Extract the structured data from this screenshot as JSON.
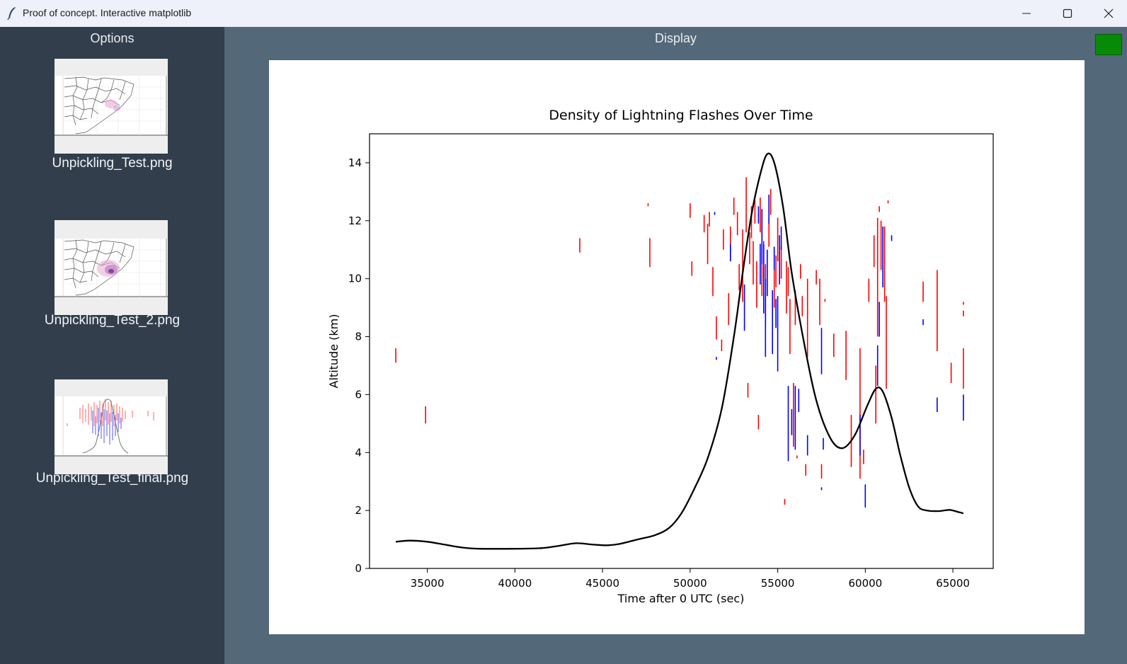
{
  "window": {
    "title": "Proof of concept. Interactive matplotlib",
    "icon": "feather-icon",
    "controls": [
      "minimize-icon",
      "maximize-icon",
      "close-icon"
    ]
  },
  "sidebar": {
    "title": "Options",
    "items": [
      {
        "label": "Unpickling_Test.png",
        "preview": "county-map"
      },
      {
        "label": "Unpickling_Test_2.png",
        "preview": "county-map-density"
      },
      {
        "label": "Unpickling_Test_final.png",
        "preview": "lightning-scatter"
      }
    ]
  },
  "display": {
    "title": "Display",
    "status_color": "#078a07"
  },
  "chart_data": {
    "type": "scatter",
    "title": "Density of Lightning Flashes Over Time",
    "xlabel": "Time after 0 UTC (sec)",
    "ylabel": "Altitude (km)",
    "xlim": [
      31700,
      67300
    ],
    "ylim": [
      0,
      15
    ],
    "xticks": [
      35000,
      40000,
      45000,
      50000,
      55000,
      60000,
      65000
    ],
    "yticks": [
      0,
      2,
      4,
      6,
      8,
      10,
      12,
      14
    ],
    "grid": false,
    "colors": {
      "positive": "#ff0000",
      "negative": "#0000ff",
      "density": "#000000"
    },
    "series": [
      {
        "marker": "vertical-segment",
        "color": "#ff0000",
        "segments": [
          [
            33200,
            7.1,
            7.6
          ],
          [
            34900,
            5.0,
            5.6
          ],
          [
            43700,
            10.9,
            11.4
          ],
          [
            47600,
            12.5,
            12.6
          ],
          [
            47700,
            10.4,
            11.4
          ],
          [
            50000,
            12.1,
            12.6
          ],
          [
            50100,
            10.1,
            10.6
          ],
          [
            50800,
            11.6,
            12.2
          ],
          [
            51000,
            10.5,
            11.9
          ],
          [
            51100,
            11.8,
            12.3
          ],
          [
            51300,
            9.4,
            10.4
          ],
          [
            51500,
            7.9,
            8.7
          ],
          [
            51800,
            7.5,
            7.9
          ],
          [
            51900,
            11.0,
            11.7
          ],
          [
            52200,
            8.4,
            9.5
          ],
          [
            52300,
            10.6,
            11.8
          ],
          [
            52500,
            12.2,
            12.8
          ],
          [
            52700,
            11.5,
            12.3
          ],
          [
            52800,
            9.6,
            10.5
          ],
          [
            53000,
            9.2,
            11.7
          ],
          [
            53200,
            11.6,
            13.5
          ],
          [
            53300,
            5.9,
            6.4
          ],
          [
            53400,
            10.5,
            11.6
          ],
          [
            53500,
            11.4,
            12.5
          ],
          [
            53600,
            9.8,
            11.3
          ],
          [
            53700,
            11.9,
            12.7
          ],
          [
            53800,
            9.0,
            10.6
          ],
          [
            53900,
            4.8,
            5.3
          ],
          [
            54000,
            11.6,
            12.8
          ],
          [
            54100,
            9.4,
            12.4
          ],
          [
            54200,
            10.0,
            11.3
          ],
          [
            54300,
            8.4,
            10.5
          ],
          [
            54500,
            11.1,
            12.1
          ],
          [
            54600,
            12.2,
            13.1
          ],
          [
            54800,
            9.0,
            11.1
          ],
          [
            54900,
            9.7,
            10.8
          ],
          [
            55000,
            10.6,
            12.1
          ],
          [
            55200,
            10.0,
            11.1
          ],
          [
            55400,
            2.2,
            2.4
          ],
          [
            55500,
            8.8,
            10.6
          ],
          [
            55600,
            9.4,
            10.4
          ],
          [
            55700,
            7.4,
            9.3
          ],
          [
            55900,
            4.2,
            6.4
          ],
          [
            56000,
            8.4,
            9.6
          ],
          [
            56100,
            3.8,
            3.9
          ],
          [
            56300,
            10.0,
            10.5
          ],
          [
            56400,
            8.7,
            9.4
          ],
          [
            56600,
            3.2,
            3.6
          ],
          [
            56700,
            7.3,
            10.0
          ],
          [
            57200,
            9.8,
            10.3
          ],
          [
            57400,
            8.4,
            10.0
          ],
          [
            57500,
            3.1,
            3.6
          ],
          [
            57700,
            9.2,
            9.3
          ],
          [
            58200,
            7.3,
            8.1
          ],
          [
            58900,
            6.5,
            8.2
          ],
          [
            59200,
            3.5,
            5.3
          ],
          [
            59700,
            3.1,
            7.6
          ],
          [
            59900,
            3.6,
            4.1
          ],
          [
            60200,
            9.2,
            10.0
          ],
          [
            60500,
            10.4,
            11.5
          ],
          [
            60600,
            5.0,
            7.0
          ],
          [
            60700,
            8.0,
            12.1
          ],
          [
            60800,
            12.3,
            12.5
          ],
          [
            60900,
            10.3,
            12.0
          ],
          [
            61100,
            9.2,
            11.8
          ],
          [
            61200,
            6.2,
            9.4
          ],
          [
            61300,
            12.6,
            12.7
          ],
          [
            63300,
            9.2,
            9.9
          ],
          [
            64100,
            7.5,
            10.3
          ],
          [
            64900,
            6.4,
            7.1
          ],
          [
            65600,
            9.1,
            9.2
          ],
          [
            65600,
            8.7,
            8.9
          ],
          [
            65600,
            6.2,
            7.6
          ]
        ]
      },
      {
        "marker": "vertical-segment",
        "color": "#0000ff",
        "segments": [
          [
            51400,
            12.2,
            12.3
          ],
          [
            51500,
            7.2,
            7.3
          ],
          [
            52300,
            10.6,
            11.2
          ],
          [
            53100,
            8.2,
            9.8
          ],
          [
            53900,
            11.9,
            12.5
          ],
          [
            54000,
            9.8,
            11.2
          ],
          [
            54100,
            10.5,
            12.4
          ],
          [
            54200,
            8.8,
            11.2
          ],
          [
            54300,
            7.3,
            10.0
          ],
          [
            54400,
            9.4,
            11.0
          ],
          [
            54500,
            11.9,
            12.9
          ],
          [
            54700,
            7.4,
            9.6
          ],
          [
            54800,
            10.3,
            11.1
          ],
          [
            54900,
            8.3,
            9.3
          ],
          [
            55000,
            6.8,
            9.4
          ],
          [
            55100,
            9.8,
            11.5
          ],
          [
            55200,
            11.0,
            11.8
          ],
          [
            55600,
            3.7,
            6.3
          ],
          [
            55800,
            4.6,
            5.5
          ],
          [
            56000,
            4.1,
            6.3
          ],
          [
            56200,
            5.4,
            6.2
          ],
          [
            56700,
            3.9,
            4.6
          ],
          [
            57500,
            2.7,
            2.8
          ],
          [
            57500,
            6.7,
            8.3
          ],
          [
            57600,
            4.1,
            4.5
          ],
          [
            59700,
            3.9,
            5.3
          ],
          [
            60000,
            2.1,
            2.9
          ],
          [
            60700,
            6.3,
            7.7
          ],
          [
            60800,
            8.0,
            9.2
          ],
          [
            61000,
            9.7,
            11.8
          ],
          [
            61500,
            11.3,
            11.5
          ],
          [
            63300,
            8.4,
            8.6
          ],
          [
            64100,
            5.4,
            5.9
          ],
          [
            65600,
            5.1,
            6.0
          ]
        ]
      }
    ],
    "density_curve": {
      "color": "#000000",
      "points": [
        [
          33200,
          0.92
        ],
        [
          34000,
          0.96
        ],
        [
          35000,
          0.92
        ],
        [
          36000,
          0.82
        ],
        [
          37000,
          0.72
        ],
        [
          38000,
          0.68
        ],
        [
          40000,
          0.68
        ],
        [
          41500,
          0.7
        ],
        [
          42500,
          0.78
        ],
        [
          43500,
          0.87
        ],
        [
          44500,
          0.82
        ],
        [
          45300,
          0.8
        ],
        [
          46000,
          0.85
        ],
        [
          47000,
          1.0
        ],
        [
          48000,
          1.15
        ],
        [
          48800,
          1.4
        ],
        [
          49500,
          1.9
        ],
        [
          50200,
          2.7
        ],
        [
          51000,
          3.8
        ],
        [
          51800,
          5.5
        ],
        [
          52500,
          8.0
        ],
        [
          53000,
          10.2
        ],
        [
          53500,
          12.2
        ],
        [
          54000,
          13.6
        ],
        [
          54400,
          14.3
        ],
        [
          54800,
          14.0
        ],
        [
          55300,
          12.5
        ],
        [
          55800,
          10.2
        ],
        [
          56500,
          7.8
        ],
        [
          57200,
          5.8
        ],
        [
          58000,
          4.5
        ],
        [
          58700,
          4.15
        ],
        [
          59400,
          4.6
        ],
        [
          60100,
          5.6
        ],
        [
          60600,
          6.2
        ],
        [
          61000,
          6.1
        ],
        [
          61500,
          5.2
        ],
        [
          62000,
          3.9
        ],
        [
          62500,
          2.8
        ],
        [
          63000,
          2.15
        ],
        [
          63500,
          2.0
        ],
        [
          64200,
          1.98
        ],
        [
          64800,
          2.02
        ],
        [
          65300,
          1.95
        ],
        [
          65600,
          1.9
        ]
      ]
    }
  }
}
